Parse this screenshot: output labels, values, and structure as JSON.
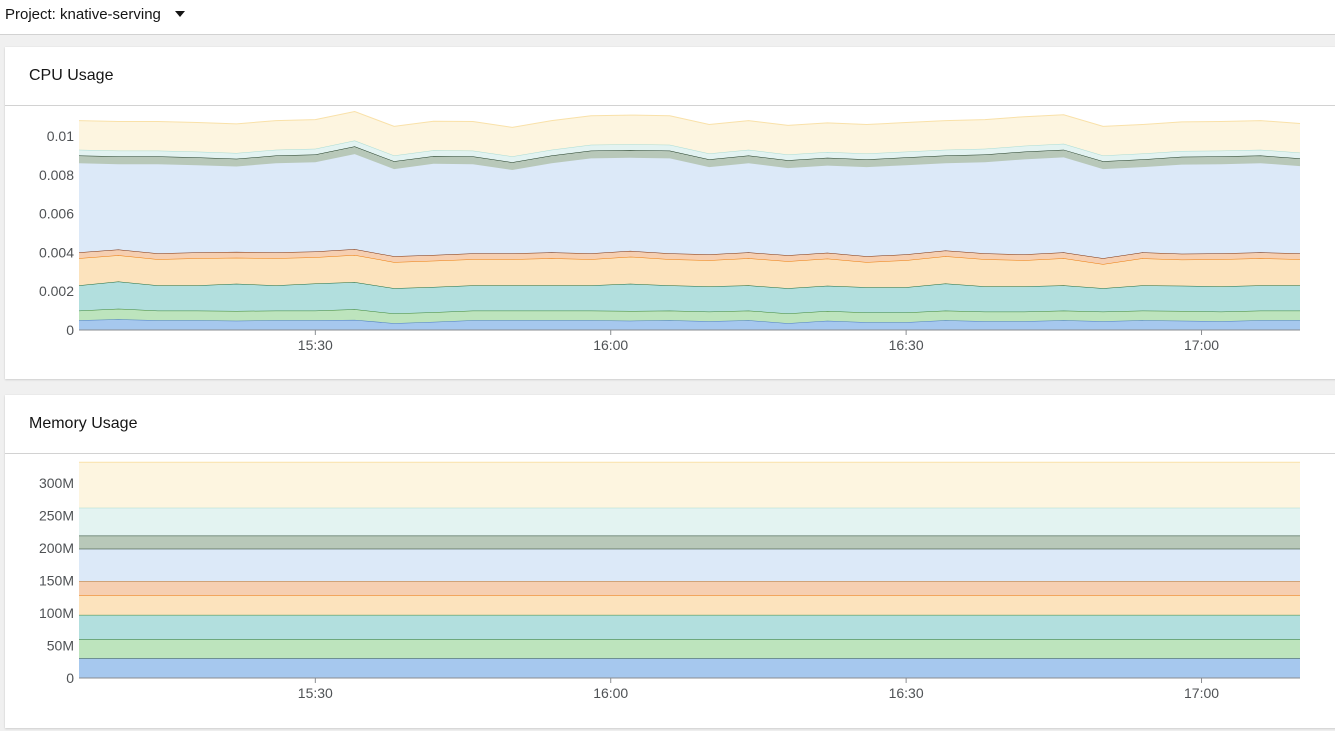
{
  "header": {
    "project_label": "Project: knative-serving"
  },
  "cards": [
    {
      "title": "CPU Usage"
    },
    {
      "title": "Memory Usage"
    }
  ],
  "chart_data": [
    {
      "type": "area",
      "title": "CPU Usage",
      "stacked": true,
      "x": [
        "15:06",
        "15:10",
        "15:14",
        "15:18",
        "15:22",
        "15:26",
        "15:30",
        "15:34",
        "15:38",
        "15:42",
        "15:46",
        "15:50",
        "15:54",
        "15:58",
        "16:02",
        "16:06",
        "16:10",
        "16:14",
        "16:18",
        "16:22",
        "16:26",
        "16:30",
        "16:34",
        "16:38",
        "16:42",
        "16:46",
        "16:50",
        "16:54",
        "16:58",
        "17:02",
        "17:06",
        "17:10"
      ],
      "xticks": [
        "15:30",
        "16:00",
        "16:30",
        "17:00"
      ],
      "yticks": [
        "0",
        "0.002",
        "0.004",
        "0.006",
        "0.008",
        "0.01"
      ],
      "ylim": [
        0,
        0.0115
      ],
      "grid": true,
      "series": [
        {
          "color": "#a6c8ee",
          "line": "#4d7fc0",
          "values": [
            0.0005,
            0.00055,
            0.0005,
            0.0005,
            0.00048,
            0.0005,
            0.0005,
            0.00052,
            0.00035,
            0.00042,
            0.0005,
            0.0005,
            0.0005,
            0.0005,
            0.00048,
            0.0005,
            0.00045,
            0.0005,
            0.00035,
            0.00048,
            0.0004,
            0.0004,
            0.0005,
            0.00045,
            0.00045,
            0.0005,
            0.00045,
            0.0005,
            0.00048,
            0.00045,
            0.0005,
            0.0005
          ]
        },
        {
          "color": "#bde4bd",
          "line": "#3e8635",
          "values": [
            0.0005,
            0.00055,
            0.0005,
            0.0005,
            0.0005,
            0.0005,
            0.0005,
            0.00055,
            0.0005,
            0.0005,
            0.0005,
            0.0005,
            0.0005,
            0.0005,
            0.0005,
            0.0005,
            0.0005,
            0.0005,
            0.0005,
            0.0005,
            0.0005,
            0.0005,
            0.0005,
            0.0005,
            0.0005,
            0.0005,
            0.0005,
            0.0005,
            0.0005,
            0.0005,
            0.0005,
            0.0005
          ]
        },
        {
          "color": "#b2dfde",
          "line": "#1e6b3a",
          "values": [
            0.0013,
            0.0014,
            0.0013,
            0.0013,
            0.0014,
            0.0013,
            0.0014,
            0.0014,
            0.0013,
            0.0013,
            0.0013,
            0.0013,
            0.0013,
            0.0013,
            0.0014,
            0.0013,
            0.0013,
            0.0013,
            0.0013,
            0.0013,
            0.0013,
            0.0013,
            0.0014,
            0.0013,
            0.0013,
            0.0013,
            0.0012,
            0.0013,
            0.0013,
            0.0013,
            0.0013,
            0.0013
          ]
        },
        {
          "color": "#fce3bd",
          "line": "#ec7a08",
          "values": [
            0.0014,
            0.00135,
            0.00135,
            0.0014,
            0.00135,
            0.0014,
            0.00135,
            0.0014,
            0.00135,
            0.00135,
            0.00135,
            0.00135,
            0.0014,
            0.00135,
            0.0014,
            0.00135,
            0.00135,
            0.0014,
            0.0014,
            0.0014,
            0.0013,
            0.0014,
            0.0014,
            0.0014,
            0.00135,
            0.0014,
            0.00125,
            0.0014,
            0.00135,
            0.0014,
            0.0014,
            0.00135
          ]
        },
        {
          "color": "#f6cfb1",
          "line": "#7a2e0a",
          "values": [
            0.0003,
            0.0003,
            0.0003,
            0.0003,
            0.0003,
            0.0003,
            0.0003,
            0.0003,
            0.0003,
            0.0003,
            0.0003,
            0.0003,
            0.0003,
            0.0003,
            0.0003,
            0.0003,
            0.0003,
            0.0003,
            0.0003,
            0.0003,
            0.0003,
            0.0003,
            0.0003,
            0.0003,
            0.0003,
            0.0003,
            0.0003,
            0.0003,
            0.0003,
            0.0003,
            0.0003,
            0.0003
          ]
        },
        {
          "color": "#dce9f8",
          "line": "#dce9f8",
          "values": [
            0.0046,
            0.0044,
            0.0046,
            0.0045,
            0.0044,
            0.0046,
            0.0046,
            0.0049,
            0.0045,
            0.0047,
            0.0046,
            0.0043,
            0.0046,
            0.0049,
            0.0048,
            0.0049,
            0.0045,
            0.0046,
            0.0045,
            0.0045,
            0.0046,
            0.0046,
            0.0045,
            0.0047,
            0.0049,
            0.0049,
            0.0046,
            0.0044,
            0.0046,
            0.0046,
            0.0046,
            0.0045
          ]
        },
        {
          "color": "#b8c8b9",
          "line": "#1f3a24",
          "values": [
            0.0004,
            0.0004,
            0.0004,
            0.0004,
            0.0004,
            0.0004,
            0.0004,
            0.0004,
            0.0004,
            0.0004,
            0.0004,
            0.0004,
            0.0004,
            0.0004,
            0.0004,
            0.0004,
            0.0004,
            0.0004,
            0.0004,
            0.0004,
            0.0004,
            0.0004,
            0.0004,
            0.0004,
            0.0004,
            0.0004,
            0.0004,
            0.0004,
            0.0004,
            0.0004,
            0.0004,
            0.0004
          ]
        },
        {
          "color": "#e3f3f1",
          "line": "#a9dcd3",
          "values": [
            0.0003,
            0.0003,
            0.0003,
            0.0003,
            0.0003,
            0.0003,
            0.0003,
            0.0003,
            0.0003,
            0.0003,
            0.0003,
            0.0003,
            0.0003,
            0.0003,
            0.0003,
            0.0003,
            0.0003,
            0.0003,
            0.0003,
            0.0003,
            0.0003,
            0.0003,
            0.0003,
            0.0003,
            0.0003,
            0.0003,
            0.0003,
            0.0003,
            0.0003,
            0.0003,
            0.0003,
            0.0003
          ]
        },
        {
          "color": "#fdf5e0",
          "line": "#f9e1a9",
          "values": [
            0.0015,
            0.0015,
            0.0015,
            0.0015,
            0.0015,
            0.0015,
            0.0015,
            0.0015,
            0.0015,
            0.0015,
            0.0015,
            0.0015,
            0.0015,
            0.0015,
            0.0015,
            0.0015,
            0.0015,
            0.0015,
            0.0015,
            0.0015,
            0.0015,
            0.0015,
            0.0015,
            0.0015,
            0.0015,
            0.0015,
            0.0015,
            0.0015,
            0.0015,
            0.0015,
            0.0015,
            0.0015
          ]
        }
      ]
    },
    {
      "type": "area",
      "title": "Memory Usage",
      "stacked": true,
      "x": [
        "15:06",
        "17:10"
      ],
      "xticks": [
        "15:30",
        "16:00",
        "16:30",
        "17:00"
      ],
      "yticks": [
        "0",
        "50M",
        "100M",
        "150M",
        "200M",
        "250M",
        "300M"
      ],
      "ylim": [
        0,
        340
      ],
      "grid": true,
      "series": [
        {
          "color": "#a6c8ee",
          "line": "#1f3a6b",
          "values": [
            30,
            30
          ]
        },
        {
          "color": "#bde4bd",
          "line": "#1e6b3a",
          "values": [
            30,
            30
          ]
        },
        {
          "color": "#b2dfde",
          "line": "#3e8635",
          "values": [
            37,
            37
          ]
        },
        {
          "color": "#fce3bd",
          "line": "#ec7a08",
          "values": [
            30,
            30
          ]
        },
        {
          "color": "#f6cfb1",
          "line": "#b56b1f",
          "values": [
            22,
            22
          ]
        },
        {
          "color": "#dce9f8",
          "line": "#1f3a24",
          "values": [
            50,
            50
          ]
        },
        {
          "color": "#b8c8b9",
          "line": "#1f3a24",
          "values": [
            20,
            20
          ]
        },
        {
          "color": "#e3f3f1",
          "line": "#a9dcd3",
          "values": [
            43,
            43
          ]
        },
        {
          "color": "#fdf5e0",
          "line": "#f9e1a9",
          "values": [
            70,
            70
          ]
        }
      ]
    }
  ]
}
